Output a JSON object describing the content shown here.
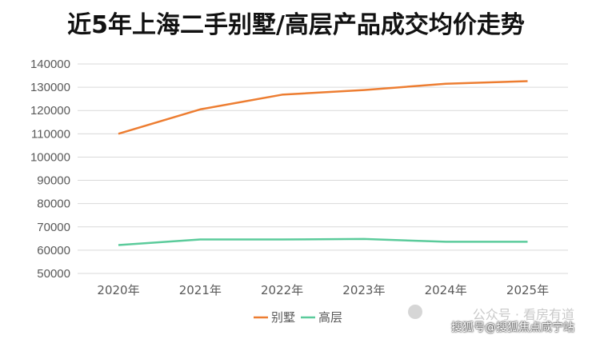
{
  "chart_data": {
    "type": "line",
    "title": "近5年上海二手别墅/高层产品成交均价走势",
    "categories": [
      "2020年",
      "2021年",
      "2022年",
      "2023年",
      "2024年",
      "2025年"
    ],
    "series": [
      {
        "name": "别墅",
        "color": "#ED7D31",
        "values": [
          110000,
          120500,
          126800,
          128800,
          131500,
          132600
        ]
      },
      {
        "name": "高层",
        "color": "#5BCB9B",
        "values": [
          62200,
          64600,
          64600,
          64800,
          63600,
          63600
        ]
      }
    ],
    "yticks": [
      50000,
      60000,
      70000,
      80000,
      90000,
      100000,
      110000,
      120000,
      130000,
      140000
    ],
    "ylim": [
      50000,
      140000
    ],
    "grid": true,
    "legend": "bottom"
  },
  "watermark": {
    "line1": "公众号 · 看房有道",
    "line2": "搜狐号@搜狐焦点咸宁站"
  }
}
